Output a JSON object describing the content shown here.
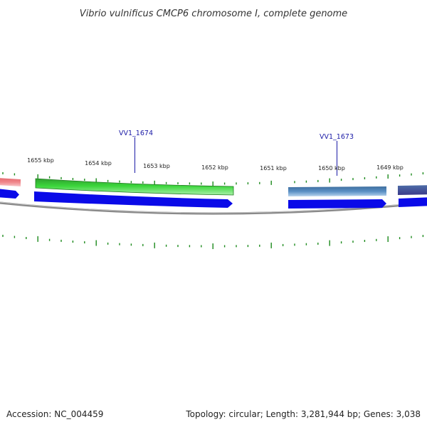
{
  "title": "Vibrio vulnificus CMCP6 chromosome I, complete genome",
  "ruler": {
    "ticks": [
      {
        "label": "1655 kbp"
      },
      {
        "label": "1654 kbp"
      },
      {
        "label": "1653 kbp"
      },
      {
        "label": "1652 kbp"
      },
      {
        "label": "1651 kbp"
      },
      {
        "label": "1650 kbp"
      },
      {
        "label": "1649 kbp"
      }
    ]
  },
  "genes": [
    {
      "label": "VV1_1674",
      "color": "#3bd63b"
    },
    {
      "label": "VV1_1673",
      "color": "#4f86c2"
    }
  ],
  "colors": {
    "forward_strand": "#0a0ae8",
    "tick_green": "#1c8a1c",
    "left_gene_pink": "#f0868a",
    "right_gene_slate": "#4e6ea8",
    "backbone": "#8a8a8a",
    "label_blue": "#1a1aa6"
  },
  "footer": {
    "accession": "Accession: NC_004459",
    "topology": "Topology: circular; Length: 3,281,944 bp; Genes: 3,038"
  }
}
